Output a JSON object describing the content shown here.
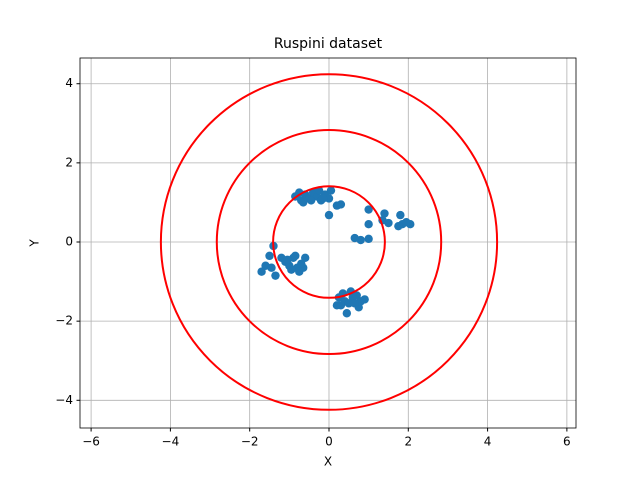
{
  "chart_data": {
    "type": "scatter",
    "title": "Ruspini dataset",
    "x_label": "X",
    "y_label": "Y",
    "color": "#1f77b4",
    "grid": true,
    "xlim": [
      -6.28,
      6.23
    ],
    "ylim": [
      -4.7,
      4.65
    ],
    "xticks": [
      {
        "value": -6,
        "label": "−6"
      },
      {
        "value": -4,
        "label": "−4"
      },
      {
        "value": -2,
        "label": "−2"
      },
      0,
      2,
      4,
      6
    ],
    "yticks": [
      {
        "value": -4,
        "label": "−4"
      },
      {
        "value": -2,
        "label": "−2"
      },
      0,
      2,
      4
    ],
    "circle_color": "#ff0000",
    "circle_radii": [
      1.41,
      2.83,
      4.24
    ],
    "x": [
      -0.85,
      -0.75,
      -0.7,
      -0.6,
      -0.5,
      -0.4,
      -0.3,
      -0.2,
      -0.1,
      0,
      0.05,
      -0.65,
      -0.45,
      -0.25,
      -0.15,
      0,
      0.2,
      0.3,
      1.0,
      1.4,
      1.35,
      1.5,
      1.8,
      1.85,
      1.75,
      2.05,
      1.95,
      1.0,
      0.65,
      0.8,
      1.0,
      -1.4,
      -1.5,
      -1.6,
      -1.7,
      -1.45,
      -1.35,
      -1.2,
      -1.1,
      -1.0,
      -0.9,
      -0.85,
      -0.8,
      -0.75,
      -0.65,
      -0.6,
      -0.95,
      -1.05,
      -0.7,
      0.2,
      0.25,
      0.35,
      0.4,
      0.5,
      0.55,
      0.6,
      0.7,
      0.75,
      0.8,
      0.9,
      0.45,
      0.3,
      0.65
    ],
    "y": [
      1.15,
      1.25,
      1.05,
      1.2,
      1.1,
      1.25,
      1.15,
      1.05,
      1.2,
      1.1,
      1.3,
      1.0,
      1.05,
      1.3,
      1.1,
      0.68,
      0.92,
      0.95,
      0.82,
      0.72,
      0.55,
      0.48,
      0.68,
      0.45,
      0.4,
      0.45,
      0.5,
      0.45,
      0.1,
      0.05,
      0.08,
      -0.1,
      -0.35,
      -0.6,
      -0.75,
      -0.65,
      -0.85,
      -0.4,
      -0.5,
      -0.6,
      -0.4,
      -0.35,
      -0.65,
      -0.75,
      -0.65,
      -0.4,
      -0.7,
      -0.45,
      -0.55,
      -1.6,
      -1.4,
      -1.3,
      -1.5,
      -1.55,
      -1.25,
      -1.4,
      -1.35,
      -1.65,
      -1.5,
      -1.45,
      -1.8,
      -1.6,
      -1.55
    ]
  }
}
